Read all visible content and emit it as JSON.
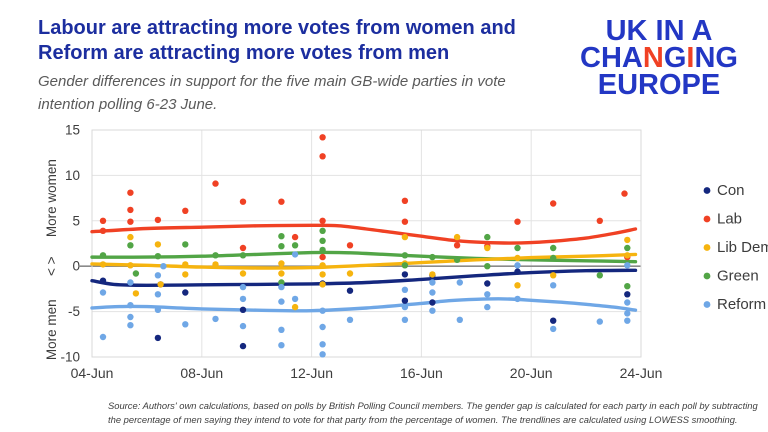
{
  "header": {
    "title": "Labour are attracting more votes from women and Reform are attracting more votes from men",
    "subtitle": "Gender differences in support for the five main GB-wide parties in vote intention polling 6-23 June.",
    "logo": {
      "lines": [
        "UK IN A",
        "CHANGING",
        "EUROPE"
      ],
      "accent_line_index": 1,
      "accent_letter_indices": [
        3,
        5
      ],
      "blue": "#2337c4",
      "accent": "#f04124"
    }
  },
  "footer": {
    "source": "Source: Authors' own calculations, based on polls by British Polling Council members. The gender gap is calculated for each party in each poll by subtracting the percentage of men saying they intend to vote for that party from the percentage of women. The trendlines are calculated using LOWESS smoothing."
  },
  "chart_data": {
    "type": "scatter",
    "title": "",
    "xlabel": "",
    "ylabel_top": "More women",
    "ylabel_mid": "< >",
    "ylabel_bottom": "More men",
    "xlim": [
      4,
      24
    ],
    "ylim": [
      -10,
      15
    ],
    "grid": true,
    "legend_position": "right",
    "x_ticks": [
      {
        "day": 4,
        "label": "04-Jun"
      },
      {
        "day": 8,
        "label": "08-Jun"
      },
      {
        "day": 12,
        "label": "12-Jun"
      },
      {
        "day": 16,
        "label": "16-Jun"
      },
      {
        "day": 20,
        "label": "20-Jun"
      },
      {
        "day": 24,
        "label": "24-Jun"
      }
    ],
    "y_ticks": [
      15,
      10,
      5,
      0,
      -5,
      -10
    ],
    "y_axis_annotations": [
      {
        "text": "More women",
        "center_value": 7.5
      },
      {
        "text": "< >",
        "center_value": 0
      },
      {
        "text": "More men",
        "center_value": -7
      }
    ],
    "colors": {
      "grid": "#e3e3e3",
      "border": "#d9d9d9",
      "zero_line": "#8a8a8a",
      "tick_text": "#3d3d3d"
    },
    "series": [
      {
        "name": "Con",
        "color": "#14277e",
        "points": [
          [
            4.4,
            -1.6
          ],
          [
            6.5,
            -2
          ],
          [
            6.4,
            -7.9
          ],
          [
            7.4,
            -2.9
          ],
          [
            9.5,
            -4.8
          ],
          [
            9.5,
            -8.8
          ],
          [
            12.4,
            -1.9
          ],
          [
            13.4,
            -2.7
          ],
          [
            15.4,
            -0.9
          ],
          [
            15.4,
            -3.8
          ],
          [
            16.4,
            -1
          ],
          [
            16.4,
            -4
          ],
          [
            18.4,
            -1.9
          ],
          [
            19.5,
            -0.6
          ],
          [
            20.8,
            -6
          ],
          [
            23.5,
            -3.1
          ]
        ],
        "trend": [
          [
            4,
            -1.6
          ],
          [
            4.8,
            -2
          ],
          [
            6,
            -2.1
          ],
          [
            8,
            -2.05
          ],
          [
            10,
            -2
          ],
          [
            12,
            -1.95
          ],
          [
            14,
            -1.8
          ],
          [
            16,
            -1.45
          ],
          [
            18,
            -1.05
          ],
          [
            20,
            -0.7
          ],
          [
            22,
            -0.5
          ],
          [
            23.8,
            -0.45
          ]
        ]
      },
      {
        "name": "Lab",
        "color": "#f04124",
        "points": [
          [
            4.4,
            5
          ],
          [
            4.4,
            3.9
          ],
          [
            5.4,
            8.1
          ],
          [
            5.4,
            6.2
          ],
          [
            5.4,
            4.9
          ],
          [
            6.4,
            5.1
          ],
          [
            7.4,
            6.1
          ],
          [
            8.5,
            9.1
          ],
          [
            9.5,
            7.1
          ],
          [
            9.5,
            2
          ],
          [
            10.9,
            7.1
          ],
          [
            11.4,
            3.2
          ],
          [
            12.4,
            14.2
          ],
          [
            12.4,
            12.1
          ],
          [
            12.4,
            5
          ],
          [
            12.4,
            1
          ],
          [
            13.4,
            2.3
          ],
          [
            15.4,
            7.2
          ],
          [
            15.4,
            4.9
          ],
          [
            17.3,
            2.3
          ],
          [
            18.4,
            2.2
          ],
          [
            19.5,
            4.9
          ],
          [
            20.8,
            6.9
          ],
          [
            22.5,
            5
          ],
          [
            23.4,
            8
          ],
          [
            23.5,
            1
          ]
        ],
        "trend": [
          [
            4,
            3.8
          ],
          [
            6,
            4.15
          ],
          [
            8,
            4.3
          ],
          [
            10,
            4.45
          ],
          [
            12,
            4.5
          ],
          [
            13,
            4.45
          ],
          [
            14,
            4.1
          ],
          [
            15,
            3.7
          ],
          [
            16,
            3.3
          ],
          [
            17,
            2.9
          ],
          [
            18,
            2.65
          ],
          [
            19,
            2.55
          ],
          [
            20,
            2.6
          ],
          [
            21,
            2.8
          ],
          [
            22,
            3.1
          ],
          [
            23,
            3.6
          ],
          [
            23.8,
            4.1
          ]
        ]
      },
      {
        "name": "Lib Dem",
        "color": "#f6b40f",
        "points": [
          [
            4.4,
            0.2
          ],
          [
            5.4,
            3.2
          ],
          [
            5.4,
            0.1
          ],
          [
            5.6,
            -3
          ],
          [
            6.4,
            2.4
          ],
          [
            6.5,
            -2
          ],
          [
            7.4,
            0.2
          ],
          [
            7.4,
            -0.9
          ],
          [
            8.5,
            0.2
          ],
          [
            9.5,
            -0.8
          ],
          [
            10.9,
            0.3
          ],
          [
            10.9,
            -0.8
          ],
          [
            11.4,
            -4.5
          ],
          [
            12.4,
            0.1
          ],
          [
            12.4,
            -0.9
          ],
          [
            12.4,
            -2
          ],
          [
            13.4,
            -0.8
          ],
          [
            15.4,
            3.2
          ],
          [
            15.4,
            0.3
          ],
          [
            16.4,
            -0.9
          ],
          [
            17.3,
            3.2
          ],
          [
            18.4,
            2
          ],
          [
            19.5,
            0.9
          ],
          [
            19.5,
            -2.1
          ],
          [
            20.8,
            -1
          ],
          [
            23.5,
            2.9
          ],
          [
            23.5,
            1.2
          ]
        ],
        "trend": [
          [
            4,
            0.25
          ],
          [
            6,
            0.1
          ],
          [
            8,
            -0.1
          ],
          [
            10,
            -0.2
          ],
          [
            12,
            -0.15
          ],
          [
            14,
            0.1
          ],
          [
            16,
            0.4
          ],
          [
            18,
            0.7
          ],
          [
            20,
            0.95
          ],
          [
            22,
            1.1
          ],
          [
            23.8,
            1.3
          ]
        ]
      },
      {
        "name": "Green",
        "color": "#52a546",
        "points": [
          [
            4.4,
            1.2
          ],
          [
            5.4,
            2.3
          ],
          [
            5.6,
            -0.8
          ],
          [
            6.4,
            1.1
          ],
          [
            7.4,
            2.4
          ],
          [
            8.5,
            1.2
          ],
          [
            9.5,
            1.2
          ],
          [
            10.9,
            3.3
          ],
          [
            10.9,
            2.2
          ],
          [
            10.9,
            -1.8
          ],
          [
            11.4,
            2.3
          ],
          [
            12.4,
            3.9
          ],
          [
            12.4,
            2.8
          ],
          [
            12.4,
            1.8
          ],
          [
            15.4,
            1.2
          ],
          [
            15.4,
            0.1
          ],
          [
            16.4,
            1
          ],
          [
            17.3,
            0.7
          ],
          [
            18.4,
            3.2
          ],
          [
            18.4,
            0
          ],
          [
            19.5,
            2
          ],
          [
            20.8,
            2
          ],
          [
            20.8,
            0.9
          ],
          [
            22.5,
            -1
          ],
          [
            23.5,
            2
          ],
          [
            23.5,
            -2.2
          ]
        ],
        "trend": [
          [
            4,
            1
          ],
          [
            6,
            1
          ],
          [
            8,
            1.1
          ],
          [
            10,
            1.3
          ],
          [
            12,
            1.5
          ],
          [
            13,
            1.5
          ],
          [
            14,
            1.4
          ],
          [
            16,
            1.1
          ],
          [
            18,
            0.85
          ],
          [
            20,
            0.7
          ],
          [
            22,
            0.6
          ],
          [
            23.8,
            0.5
          ]
        ]
      },
      {
        "name": "Reform",
        "color": "#6fa7e6",
        "points": [
          [
            4.4,
            -2.9
          ],
          [
            4.4,
            -7.8
          ],
          [
            5.4,
            -1.8
          ],
          [
            5.4,
            -4.3
          ],
          [
            5.4,
            -5.6
          ],
          [
            5.4,
            -6.5
          ],
          [
            6.6,
            0
          ],
          [
            6.4,
            -1
          ],
          [
            6.4,
            -3.1
          ],
          [
            6.4,
            -4.8
          ],
          [
            7.4,
            -6.4
          ],
          [
            8.5,
            -5.8
          ],
          [
            9.5,
            -2.3
          ],
          [
            9.5,
            -3.6
          ],
          [
            9.5,
            -6.6
          ],
          [
            10.9,
            -2.3
          ],
          [
            10.9,
            -3.9
          ],
          [
            10.9,
            -7
          ],
          [
            10.9,
            -8.7
          ],
          [
            11.4,
            1.3
          ],
          [
            11.4,
            -3.6
          ],
          [
            12.4,
            -4.9
          ],
          [
            12.4,
            -6.7
          ],
          [
            12.4,
            -8.6
          ],
          [
            12.4,
            -9.7
          ],
          [
            13.4,
            -5.9
          ],
          [
            15.4,
            -2.6
          ],
          [
            15.4,
            -4.5
          ],
          [
            15.4,
            -5.9
          ],
          [
            16.4,
            -1.8
          ],
          [
            16.4,
            -2.9
          ],
          [
            16.4,
            -4.9
          ],
          [
            17.4,
            -1.8
          ],
          [
            17.4,
            -5.9
          ],
          [
            18.4,
            -3.1
          ],
          [
            18.4,
            -4.5
          ],
          [
            19.5,
            0.1
          ],
          [
            19.5,
            -3.6
          ],
          [
            20.8,
            -2.1
          ],
          [
            20.8,
            -6.9
          ],
          [
            22.5,
            -6.1
          ],
          [
            23.5,
            0.1
          ],
          [
            23.5,
            -4
          ],
          [
            23.5,
            -5.2
          ],
          [
            23.5,
            -6
          ]
        ],
        "trend": [
          [
            4,
            -4.6
          ],
          [
            5,
            -4.45
          ],
          [
            6,
            -4.45
          ],
          [
            8,
            -4.7
          ],
          [
            10,
            -4.85
          ],
          [
            12,
            -4.9
          ],
          [
            14,
            -4.6
          ],
          [
            16,
            -4.1
          ],
          [
            17,
            -3.8
          ],
          [
            18,
            -3.65
          ],
          [
            19,
            -3.6
          ],
          [
            20,
            -3.75
          ],
          [
            21,
            -3.95
          ],
          [
            22,
            -4.2
          ],
          [
            23,
            -4.5
          ],
          [
            23.8,
            -4.85
          ]
        ]
      }
    ],
    "legend": [
      "Con",
      "Lab",
      "Lib Dem",
      "Green",
      "Reform"
    ]
  }
}
